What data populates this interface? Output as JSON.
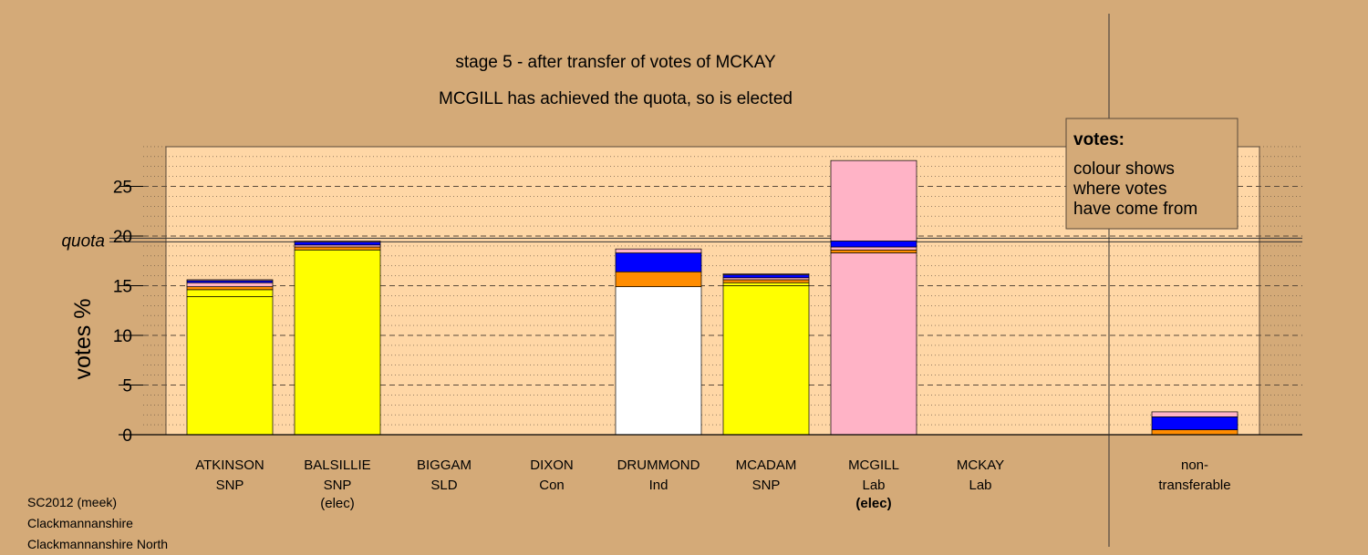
{
  "chart_data": {
    "type": "bar",
    "stacked": true,
    "title": "stage 5 - after transfer of votes of MCKAY",
    "subtitle": "MCGILL has achieved the quota, so is elected",
    "ylabel": "votes %",
    "ylim": [
      0,
      29
    ],
    "yticks": [
      0,
      5,
      10,
      15,
      20,
      25
    ],
    "quota": 19.6,
    "quota_label": "quota",
    "grid": true,
    "categories": [
      {
        "name": "ATKINSON",
        "party": "SNP",
        "status": ""
      },
      {
        "name": "BALSILLIE",
        "party": "SNP",
        "status": "(elec)"
      },
      {
        "name": "BIGGAM",
        "party": "SLD",
        "status": ""
      },
      {
        "name": "DIXON",
        "party": "Con",
        "status": ""
      },
      {
        "name": "DRUMMOND",
        "party": "Ind",
        "status": ""
      },
      {
        "name": "MCADAM",
        "party": "SNP",
        "status": ""
      },
      {
        "name": "MCGILL",
        "party": "Lab",
        "status": "(elec)"
      },
      {
        "name": "MCKAY",
        "party": "Lab",
        "status": ""
      }
    ],
    "nontransferable_label": [
      "non-",
      "transferable"
    ],
    "bars": [
      {
        "candidate": "ATKINSON",
        "segments": [
          {
            "color": "#ffff00",
            "value": 13.9
          },
          {
            "color": "#ffff00",
            "value": 0.7
          },
          {
            "color": "#ff8c00",
            "value": 0.3
          },
          {
            "color": "#ffb3c6",
            "value": 0.4
          },
          {
            "color": "#0000ff",
            "value": 0.2
          },
          {
            "color": "#ffb3c6",
            "value": 0.1
          }
        ]
      },
      {
        "candidate": "BALSILLIE",
        "segments": [
          {
            "color": "#ffff00",
            "value": 18.6
          },
          {
            "color": "#ff8c00",
            "value": 0.3
          },
          {
            "color": "#ffb3c6",
            "value": 0.2
          },
          {
            "color": "#0000ff",
            "value": 0.3
          },
          {
            "color": "#ffb3c6",
            "value": 0.1
          }
        ]
      },
      {
        "candidate": "BIGGAM",
        "segments": []
      },
      {
        "candidate": "DIXON",
        "segments": []
      },
      {
        "candidate": "DRUMMOND",
        "segments": [
          {
            "color": "#ffffff",
            "value": 14.9
          },
          {
            "color": "#ff8c00",
            "value": 1.5
          },
          {
            "color": "#0000ff",
            "value": 1.9
          },
          {
            "color": "#ffb3c6",
            "value": 0.4
          }
        ]
      },
      {
        "candidate": "MCADAM",
        "segments": [
          {
            "color": "#ffff00",
            "value": 15.0
          },
          {
            "color": "#ffff00",
            "value": 0.3
          },
          {
            "color": "#ff8c00",
            "value": 0.3
          },
          {
            "color": "#ffb3c6",
            "value": 0.2
          },
          {
            "color": "#0000ff",
            "value": 0.3
          },
          {
            "color": "#ffb3c6",
            "value": 0.1
          }
        ]
      },
      {
        "candidate": "MCGILL",
        "segments": [
          {
            "color": "#ffb3c6",
            "value": 18.3
          },
          {
            "color": "#ff8c00",
            "value": 0.3
          },
          {
            "color": "#ffb3c6",
            "value": 0.3
          },
          {
            "color": "#0000ff",
            "value": 0.6
          },
          {
            "color": "#ffb3c6",
            "value": 8.1
          }
        ]
      },
      {
        "candidate": "MCKAY",
        "segments": []
      }
    ],
    "nontransferable": {
      "segments": [
        {
          "color": "#ff8c00",
          "value": 0.5
        },
        {
          "color": "#0000ff",
          "value": 1.3
        },
        {
          "color": "#ffb3c6",
          "value": 0.5
        }
      ]
    },
    "legend": {
      "title": "votes:",
      "lines": [
        "colour shows",
        "where votes",
        "have come from"
      ],
      "position": "top-right"
    }
  },
  "footer": {
    "line1": "SC2012 (meek)",
    "line2": "Clackmannanshire",
    "line3": "Clackmannanshire North"
  }
}
